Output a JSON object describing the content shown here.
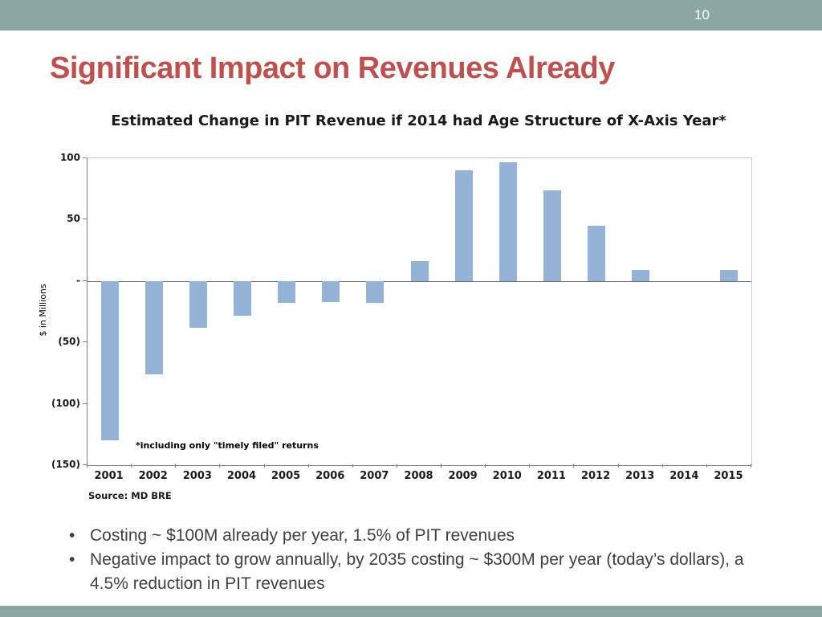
{
  "slide": {
    "number": "10",
    "title": "Significant Impact on Revenues Already",
    "bullets": [
      "Costing ~ $100M already per year, 1.5% of PIT revenues",
      "Negative impact to grow annually, by 2035 costing ~ $300M per year (today’s dollars), a 4.5% reduction in PIT revenues"
    ],
    "colors": {
      "accent_bar": "#8ca7a3",
      "title_red": "#c0504d",
      "bar_blue": "#95b3d7"
    }
  },
  "chart_data": {
    "type": "bar",
    "title": "Estimated Change in PIT Revenue if 2014 had Age Structure of X-Axis Year*",
    "ylabel": "$ in Millions",
    "xlabel": "",
    "categories": [
      "2001",
      "2002",
      "2003",
      "2004",
      "2005",
      "2006",
      "2007",
      "2008",
      "2009",
      "2010",
      "2011",
      "2012",
      "2013",
      "2014",
      "2015"
    ],
    "values": [
      -130,
      -76,
      -38,
      -28,
      -18,
      -17,
      -18,
      16,
      90,
      97,
      74,
      45,
      9,
      0,
      9
    ],
    "ylim": [
      -150,
      100
    ],
    "yticks": [
      {
        "value": 100,
        "label": "100"
      },
      {
        "value": 50,
        "label": "50"
      },
      {
        "value": 0,
        "label": "-"
      },
      {
        "value": -50,
        "label": "(50)"
      },
      {
        "value": -100,
        "label": "(100)"
      },
      {
        "value": -150,
        "label": "(150)"
      }
    ],
    "grid": false,
    "legend": false,
    "bar_color": "#95b3d7",
    "annotation": "*including only \"timely filed\" returns",
    "source": "Source: MD BRE"
  }
}
